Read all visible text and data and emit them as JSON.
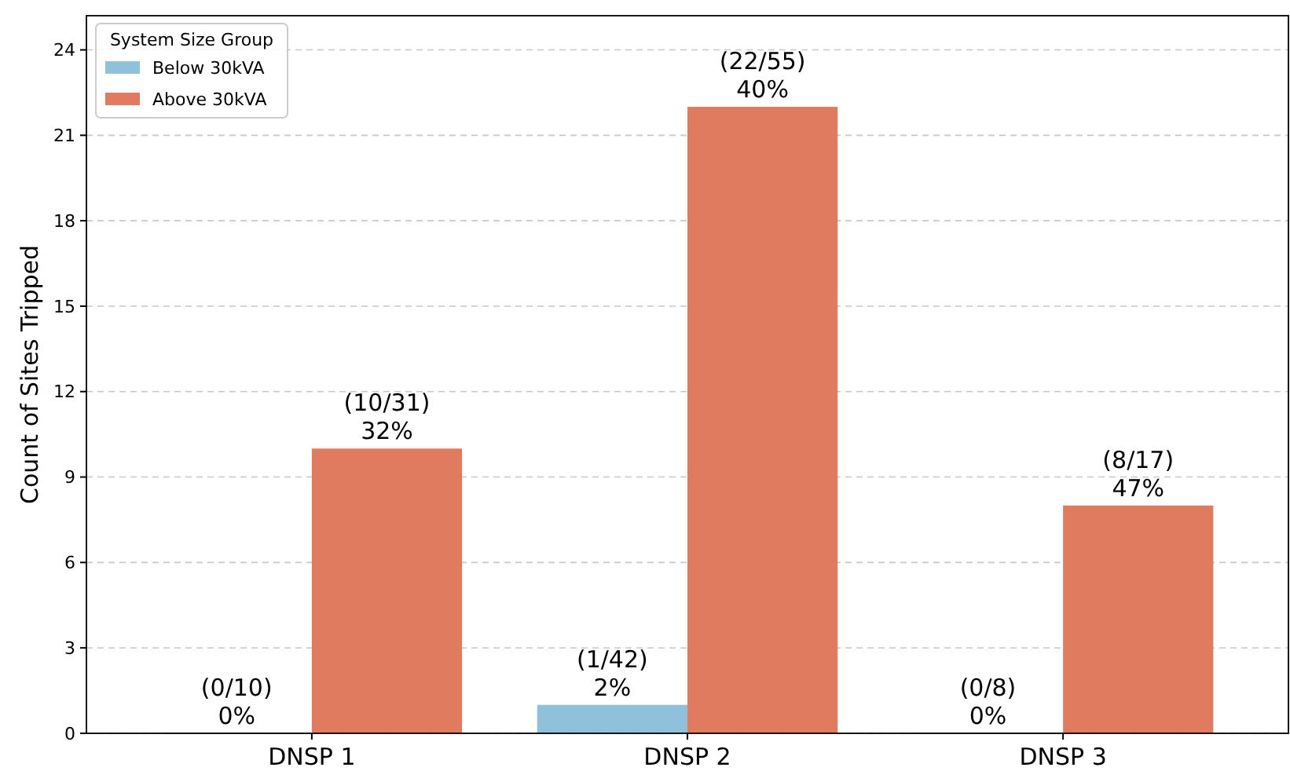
{
  "chart_data": {
    "type": "bar",
    "ylabel": "Count of Sites Tripped",
    "legend_title": "System Size Group",
    "categories": [
      "DNSP 1",
      "DNSP 2",
      "DNSP 3"
    ],
    "series": [
      {
        "name": "Below 30kVA",
        "color": "#8fc1da",
        "values": [
          0,
          1,
          0
        ],
        "value_labels": [
          "(0/10)\n0%",
          "(1/42)\n2%",
          "(0/8)\n0%"
        ]
      },
      {
        "name": "Above 30kVA",
        "color": "#e07b5f",
        "values": [
          10,
          22,
          8
        ],
        "value_labels": [
          "(10/31)\n32%",
          "(22/55)\n40%",
          "(8/17)\n47%"
        ]
      }
    ],
    "ylim": [
      0,
      25.2
    ],
    "yticks": [
      0,
      3,
      6,
      9,
      12,
      15,
      18,
      21,
      24
    ],
    "grid": "y",
    "legend": "top left"
  }
}
